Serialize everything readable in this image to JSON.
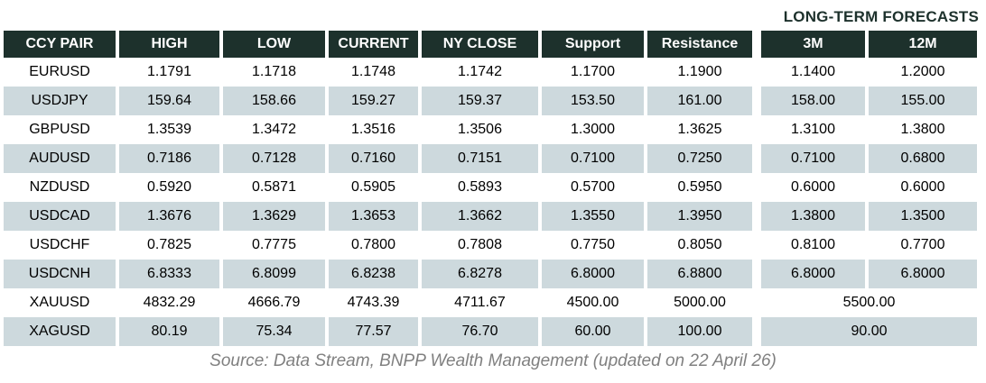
{
  "colors": {
    "header_bg": "#1d312c",
    "header_text": "#ffffff",
    "row_alt_bg": "#cdd9dd",
    "row_bg": "#ffffff",
    "value_text": "#000000",
    "title_text": "#1d312c",
    "source_text": "#808080"
  },
  "chart_data": {
    "type": "table",
    "title": "LONG-TERM FORECASTS",
    "columns": [
      "CCY PAIR",
      "HIGH",
      "LOW",
      "CURRENT",
      "NY CLOSE",
      "Support",
      "Resistance",
      "3M",
      "12M"
    ],
    "rows": [
      {
        "cells": [
          "EURUSD",
          "1.1791",
          "1.1718",
          "1.1748",
          "1.1742",
          "1.1700",
          "1.1900",
          "1.1400",
          "1.2000"
        ],
        "forecast_merged": false
      },
      {
        "cells": [
          "USDJPY",
          "159.64",
          "158.66",
          "159.27",
          "159.37",
          "153.50",
          "161.00",
          "158.00",
          "155.00"
        ],
        "forecast_merged": false
      },
      {
        "cells": [
          "GBPUSD",
          "1.3539",
          "1.3472",
          "1.3516",
          "1.3506",
          "1.3000",
          "1.3625",
          "1.3100",
          "1.3800"
        ],
        "forecast_merged": false
      },
      {
        "cells": [
          "AUDUSD",
          "0.7186",
          "0.7128",
          "0.7160",
          "0.7151",
          "0.7100",
          "0.7250",
          "0.7100",
          "0.6800"
        ],
        "forecast_merged": false
      },
      {
        "cells": [
          "NZDUSD",
          "0.5920",
          "0.5871",
          "0.5905",
          "0.5893",
          "0.5700",
          "0.5950",
          "0.6000",
          "0.6000"
        ],
        "forecast_merged": false
      },
      {
        "cells": [
          "USDCAD",
          "1.3676",
          "1.3629",
          "1.3653",
          "1.3662",
          "1.3550",
          "1.3950",
          "1.3800",
          "1.3500"
        ],
        "forecast_merged": false
      },
      {
        "cells": [
          "USDCHF",
          "0.7825",
          "0.7775",
          "0.7800",
          "0.7808",
          "0.7750",
          "0.8050",
          "0.8100",
          "0.7700"
        ],
        "forecast_merged": false
      },
      {
        "cells": [
          "USDCNH",
          "6.8333",
          "6.8099",
          "6.8238",
          "6.8278",
          "6.8000",
          "6.8800",
          "6.8000",
          "6.8000"
        ],
        "forecast_merged": false
      },
      {
        "cells": [
          "XAUUSD",
          "4832.29",
          "4666.79",
          "4743.39",
          "4711.67",
          "4500.00",
          "5000.00",
          "5500.00"
        ],
        "forecast_merged": true
      },
      {
        "cells": [
          "XAGUSD",
          "80.19",
          "75.34",
          "77.57",
          "76.70",
          "60.00",
          "100.00",
          "90.00"
        ],
        "forecast_merged": true
      }
    ],
    "layout": {
      "striped": true,
      "merged_note": "For XAUUSD and XAGUSD the 3M and 12M forecast columns are merged into one cell"
    },
    "caption": "Source: Data Stream, BNPP Wealth Management (updated on 22 April 26)"
  }
}
